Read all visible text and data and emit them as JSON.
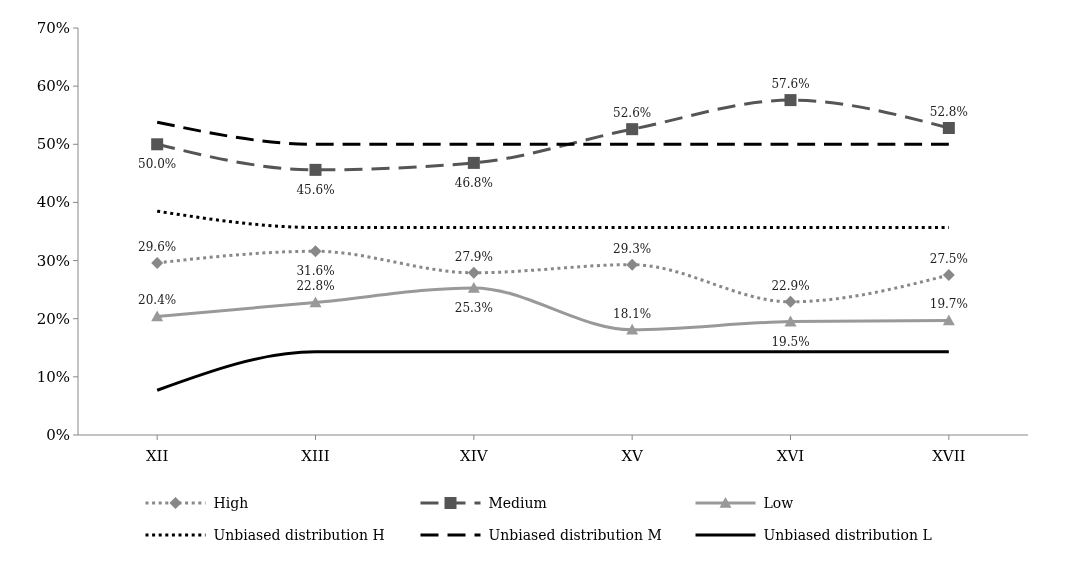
{
  "chart_data": {
    "type": "line",
    "categories": [
      "XII",
      "XIII",
      "XIV",
      "XV",
      "XVI",
      "XVII"
    ],
    "ylim": [
      0,
      70
    ],
    "yticks": [
      {
        "value": 0,
        "label": "0%"
      },
      {
        "value": 10,
        "label": "10%"
      },
      {
        "value": 20,
        "label": "20%"
      },
      {
        "value": 30,
        "label": "30%"
      },
      {
        "value": 40,
        "label": "40%"
      },
      {
        "value": 50,
        "label": "50%"
      },
      {
        "value": 60,
        "label": "60%"
      },
      {
        "value": 70,
        "label": "70%"
      }
    ],
    "grid": false,
    "legend": "bottom",
    "series": [
      {
        "name": "High",
        "color": "#888888",
        "marker": "diamond",
        "line_style": "dotted",
        "values": [
          29.6,
          31.6,
          27.9,
          29.3,
          22.9,
          27.5
        ],
        "value_labels": [
          "29.6%",
          "31.6%",
          "27.9%",
          "29.3%",
          "22.9%",
          "27.5%"
        ]
      },
      {
        "name": "Medium",
        "color": "#555555",
        "marker": "square",
        "line_style": "dashed",
        "values": [
          50.0,
          45.6,
          46.8,
          52.6,
          57.6,
          52.8
        ],
        "value_labels": [
          "50.0%",
          "45.6%",
          "46.8%",
          "52.6%",
          "57.6%",
          "52.8%"
        ]
      },
      {
        "name": "Low",
        "color": "#999999",
        "marker": "triangle",
        "line_style": "solid",
        "values": [
          20.4,
          22.8,
          25.3,
          18.1,
          19.5,
          19.7
        ],
        "value_labels": [
          "20.4%",
          "22.8%",
          "25.3%",
          "18.1%",
          "19.5%",
          "19.7%"
        ]
      },
      {
        "name": "Unbiased distribution H",
        "color": "#000000",
        "marker": "none",
        "line_style": "dotted",
        "values": [
          38.5,
          35.7,
          35.7,
          35.7,
          35.7,
          35.7
        ]
      },
      {
        "name": "Unbiased distribution M",
        "color": "#000000",
        "marker": "none",
        "line_style": "dashed",
        "values": [
          53.8,
          50.0,
          50.0,
          50.0,
          50.0,
          50.0
        ]
      },
      {
        "name": "Unbiased distribution L",
        "color": "#000000",
        "marker": "none",
        "line_style": "solid",
        "values": [
          7.7,
          14.3,
          14.3,
          14.3,
          14.3,
          14.3
        ]
      }
    ]
  }
}
